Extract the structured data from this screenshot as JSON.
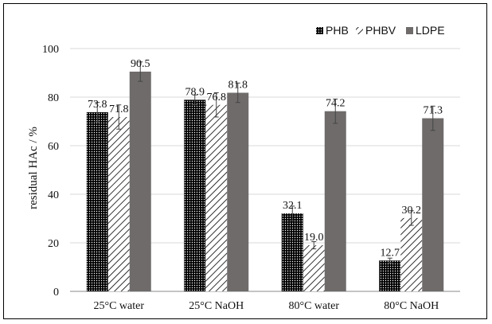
{
  "chart_data": {
    "type": "bar",
    "ylabel": "residual HAc / %",
    "xlabel": "",
    "ylim": [
      0,
      100
    ],
    "yticks": [
      0,
      20,
      40,
      60,
      80,
      100
    ],
    "grid": "horizontal",
    "legend_position": "top-right",
    "categories": [
      "25°C water",
      "25°C NaOH",
      "80°C water",
      "80°C NaOH"
    ],
    "series": [
      {
        "name": "PHB",
        "pattern": "dots",
        "color": "#000000",
        "values": [
          73.8,
          78.9,
          32.1,
          12.7
        ],
        "errors": [
          4,
          2,
          3,
          1
        ],
        "labels": [
          "73.8",
          "78.9",
          "32.1",
          "12.7"
        ]
      },
      {
        "name": "PHBV",
        "pattern": "diagonal-lines",
        "color": "#000000",
        "values": [
          71.8,
          76.8,
          19.0,
          30.2
        ],
        "errors": [
          5,
          5,
          1.5,
          3
        ],
        "labels": [
          "71.8",
          "76.8",
          "19.0",
          "30.2"
        ]
      },
      {
        "name": "LDPE",
        "pattern": "solid",
        "color": "#6f6b6b",
        "values": [
          90.5,
          81.8,
          74.2,
          71.3
        ],
        "errors": [
          4,
          4,
          5,
          5
        ],
        "labels": [
          "90.5",
          "81.8",
          "74.2",
          "71.3"
        ]
      }
    ]
  }
}
